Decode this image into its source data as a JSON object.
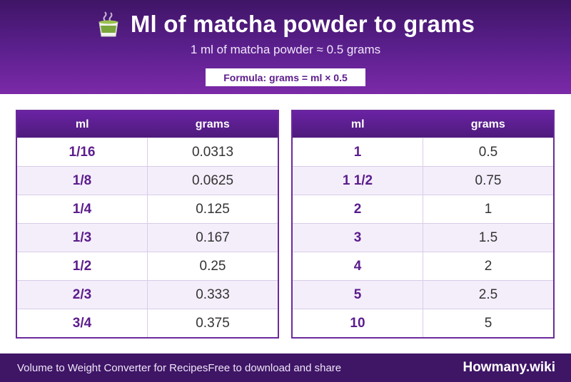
{
  "header": {
    "title": "Ml of matcha powder to grams",
    "icon": "matcha-tea-cup-icon",
    "subtitle": "1 ml of matcha powder ≈ 0.5 grams",
    "formula": "Formula: grams = ml × 0.5"
  },
  "tables": {
    "left": {
      "col_ml": "ml",
      "col_grams": "grams",
      "rows": [
        {
          "ml": "1/16",
          "grams": "0.0313"
        },
        {
          "ml": "1/8",
          "grams": "0.0625"
        },
        {
          "ml": "1/4",
          "grams": "0.125"
        },
        {
          "ml": "1/3",
          "grams": "0.167"
        },
        {
          "ml": "1/2",
          "grams": "0.25"
        },
        {
          "ml": "2/3",
          "grams": "0.333"
        },
        {
          "ml": "3/4",
          "grams": "0.375"
        }
      ]
    },
    "right": {
      "col_ml": "ml",
      "col_grams": "grams",
      "rows": [
        {
          "ml": "1",
          "grams": "0.5"
        },
        {
          "ml": "1 1/2",
          "grams": "0.75"
        },
        {
          "ml": "2",
          "grams": "1"
        },
        {
          "ml": "3",
          "grams": "1.5"
        },
        {
          "ml": "4",
          "grams": "2"
        },
        {
          "ml": "5",
          "grams": "2.5"
        },
        {
          "ml": "10",
          "grams": "5"
        }
      ]
    }
  },
  "footer": {
    "left": "Volume to Weight Converter for Recipes",
    "middle": "Free to download and share",
    "brand": "Howmany.wiki"
  },
  "colors": {
    "primary": "#5b1c8c",
    "header_dark": "#3f1566",
    "row_alt": "#f4eefb"
  }
}
